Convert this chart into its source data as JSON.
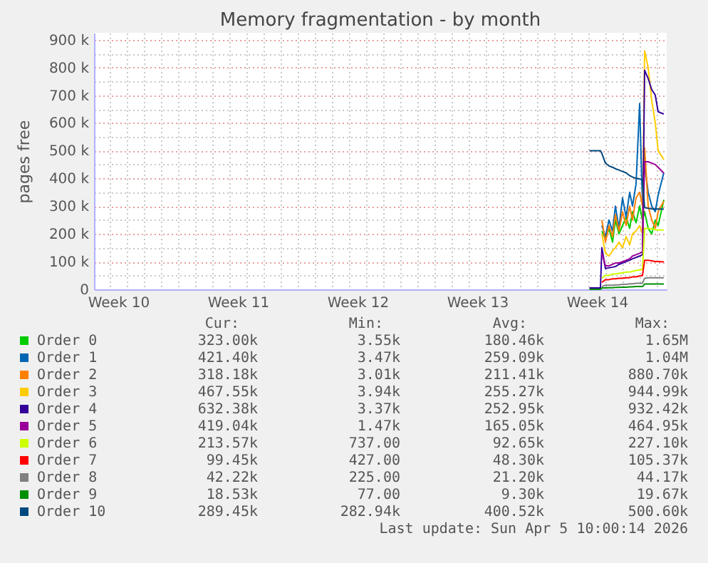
{
  "chart_data": {
    "type": "line",
    "title": "Memory fragmentation - by month",
    "ylabel": "pages free",
    "x": [
      "2026-04-01T01:30",
      "2026-04-01T07:00",
      "2026-04-01T12:00",
      "2026-04-01T17:00",
      "2026-04-01T19:00",
      "2026-04-02T00:00",
      "2026-04-02T05:00",
      "2026-04-02T10:00",
      "2026-04-02T14:00",
      "2026-04-02T19:00",
      "2026-04-03T00:00",
      "2026-04-03T05:00",
      "2026-04-03T10:00",
      "2026-04-03T14:00",
      "2026-04-03T19:00",
      "2026-04-04T00:00",
      "2026-04-04T04:00",
      "2026-04-04T07:00",
      "2026-04-04T12:00",
      "2026-04-04T17:00",
      "2026-04-04T22:00",
      "2026-04-05T02:00",
      "2026-04-05T10:00"
    ],
    "series": [
      {
        "name": "Order 0",
        "color": "#00cc00",
        "values": [
          null,
          null,
          null,
          null,
          210000,
          180000,
          220000,
          170000,
          250000,
          200000,
          230000,
          260000,
          220000,
          280000,
          240000,
          300000,
          250000,
          280000,
          220000,
          200000,
          250000,
          230000,
          323000
        ]
      },
      {
        "name": "Order 1",
        "color": "#0066b3",
        "values": [
          null,
          null,
          null,
          null,
          230000,
          190000,
          250000,
          210000,
          300000,
          220000,
          330000,
          260000,
          350000,
          300000,
          380000,
          670000,
          300000,
          450000,
          350000,
          300000,
          280000,
          340000,
          421000
        ]
      },
      {
        "name": "Order 2",
        "color": "#ff8000",
        "values": [
          null,
          null,
          null,
          null,
          250000,
          170000,
          230000,
          190000,
          270000,
          210000,
          280000,
          230000,
          300000,
          250000,
          330000,
          350000,
          300000,
          510000,
          300000,
          250000,
          220000,
          280000,
          318000
        ]
      },
      {
        "name": "Order 3",
        "color": "#ffcc00",
        "values": [
          null,
          null,
          null,
          null,
          200000,
          130000,
          120000,
          140000,
          150000,
          170000,
          150000,
          190000,
          160000,
          200000,
          210000,
          230000,
          200000,
          860000,
          800000,
          680000,
          600000,
          500000,
          468000
        ]
      },
      {
        "name": "Order 4",
        "color": "#330099",
        "values": [
          5000,
          5000,
          5000,
          5000,
          150000,
          75000,
          78000,
          80000,
          82000,
          90000,
          95000,
          100000,
          105000,
          110000,
          115000,
          120000,
          125000,
          790000,
          760000,
          720000,
          700000,
          640000,
          632000
        ]
      },
      {
        "name": "Order 5",
        "color": "#990099",
        "values": [
          null,
          null,
          null,
          null,
          130000,
          85000,
          85000,
          90000,
          95000,
          95000,
          100000,
          105000,
          110000,
          120000,
          125000,
          130000,
          135000,
          460000,
          460000,
          455000,
          450000,
          440000,
          419000
        ]
      },
      {
        "name": "Order 6",
        "color": "#ccff00",
        "values": [
          null,
          null,
          null,
          null,
          40000,
          50000,
          50000,
          55000,
          55000,
          58000,
          60000,
          62000,
          62000,
          65000,
          68000,
          70000,
          72000,
          220000,
          220000,
          218000,
          215000,
          214000,
          214000
        ]
      },
      {
        "name": "Order 7",
        "color": "#ff0000",
        "values": [
          null,
          null,
          null,
          null,
          25000,
          35000,
          35000,
          38000,
          38000,
          40000,
          40000,
          42000,
          42000,
          45000,
          45000,
          48000,
          50000,
          105000,
          105000,
          103000,
          100000,
          100000,
          99000
        ]
      },
      {
        "name": "Order 8",
        "color": "#808080",
        "values": [
          null,
          null,
          null,
          null,
          10000,
          15000,
          15000,
          15000,
          16000,
          16000,
          18000,
          18000,
          20000,
          20000,
          22000,
          22000,
          22000,
          40000,
          42000,
          42000,
          42000,
          42000,
          42000
        ]
      },
      {
        "name": "Order 9",
        "color": "#008f00",
        "values": [
          0,
          0,
          0,
          0,
          5000,
          5000,
          6000,
          6000,
          7000,
          7000,
          8000,
          8000,
          9000,
          9000,
          10000,
          10000,
          10000,
          19000,
          19000,
          19000,
          19000,
          19000,
          19000
        ]
      },
      {
        "name": "Order 10",
        "color": "#00487d",
        "values": [
          500000,
          500000,
          500000,
          500000,
          490000,
          455000,
          445000,
          440000,
          435000,
          430000,
          425000,
          420000,
          410000,
          405000,
          400000,
          398000,
          395000,
          295000,
          292000,
          290000,
          290000,
          290000,
          289000
        ]
      }
    ],
    "xlim": [
      "2026-03-03T02:00",
      "2026-04-05T14:00"
    ],
    "xticks": [
      {
        "value": "2026-03-04",
        "label": null
      },
      {
        "value": "2026-03-04T12:00",
        "label": "Week 10"
      },
      {
        "value": "2026-03-05",
        "label": null
      },
      {
        "value": "2026-03-06",
        "label": null
      },
      {
        "value": "2026-03-07",
        "label": null
      },
      {
        "value": "2026-03-08",
        "label": null
      },
      {
        "value": "2026-03-09",
        "label": null
      },
      {
        "value": "2026-03-10",
        "label": null
      },
      {
        "value": "2026-03-11",
        "label": null
      },
      {
        "value": "2026-03-11T12:00",
        "label": "Week 11"
      },
      {
        "value": "2026-03-12",
        "label": null
      },
      {
        "value": "2026-03-13",
        "label": null
      },
      {
        "value": "2026-03-14",
        "label": null
      },
      {
        "value": "2026-03-15",
        "label": null
      },
      {
        "value": "2026-03-16",
        "label": null
      },
      {
        "value": "2026-03-17",
        "label": null
      },
      {
        "value": "2026-03-18",
        "label": null
      },
      {
        "value": "2026-03-18T12:00",
        "label": "Week 12"
      },
      {
        "value": "2026-03-19",
        "label": null
      },
      {
        "value": "2026-03-20",
        "label": null
      },
      {
        "value": "2026-03-21",
        "label": null
      },
      {
        "value": "2026-03-22",
        "label": null
      },
      {
        "value": "2026-03-23",
        "label": null
      },
      {
        "value": "2026-03-24",
        "label": null
      },
      {
        "value": "2026-03-25",
        "label": null
      },
      {
        "value": "2026-03-25T12:00",
        "label": "Week 13"
      },
      {
        "value": "2026-03-26",
        "label": null
      },
      {
        "value": "2026-03-27",
        "label": null
      },
      {
        "value": "2026-03-28",
        "label": null
      },
      {
        "value": "2026-03-29",
        "label": null
      },
      {
        "value": "2026-03-30",
        "label": null
      },
      {
        "value": "2026-03-31",
        "label": null
      },
      {
        "value": "2026-04-01",
        "label": null
      },
      {
        "value": "2026-04-01T12:00",
        "label": "Week 14"
      },
      {
        "value": "2026-04-02",
        "label": null
      },
      {
        "value": "2026-04-03",
        "label": null
      },
      {
        "value": "2026-04-04",
        "label": null
      },
      {
        "value": "2026-04-05",
        "label": null
      }
    ],
    "ylim": [
      0,
      925000
    ],
    "yticks": [
      {
        "value": 0,
        "label": "0"
      },
      {
        "value": 50000,
        "label": null
      },
      {
        "value": 100000,
        "label": "100 k"
      },
      {
        "value": 150000,
        "label": null
      },
      {
        "value": 200000,
        "label": "200 k"
      },
      {
        "value": 250000,
        "label": null
      },
      {
        "value": 300000,
        "label": "300 k"
      },
      {
        "value": 350000,
        "label": null
      },
      {
        "value": 400000,
        "label": "400 k"
      },
      {
        "value": 450000,
        "label": null
      },
      {
        "value": 500000,
        "label": "500 k"
      },
      {
        "value": 550000,
        "label": null
      },
      {
        "value": 600000,
        "label": "600 k"
      },
      {
        "value": 650000,
        "label": null
      },
      {
        "value": 700000,
        "label": "700 k"
      },
      {
        "value": 750000,
        "label": null
      },
      {
        "value": 800000,
        "label": "800 k"
      },
      {
        "value": 850000,
        "label": null
      },
      {
        "value": 900000,
        "label": "900 k"
      }
    ],
    "grid": true,
    "legend": "bottom",
    "annotations": [
      "Cur:",
      "Min:",
      "Avg:",
      "Max:",
      "323.00k",
      "3.55k",
      "180.46k",
      "1.65M",
      "421.40k",
      "3.47k",
      "259.09k",
      "1.04M",
      "318.18k",
      "3.01k",
      "211.41k",
      "880.70k",
      "467.55k",
      "3.94k",
      "255.27k",
      "944.99k",
      "632.38k",
      "3.37k",
      "252.95k",
      "932.42k",
      "419.04k",
      "1.47k",
      "165.05k",
      "464.95k",
      "213.57k",
      "737.00",
      "92.65k",
      "227.10k",
      "99.45k",
      "427.00",
      "48.30k",
      "105.37k",
      "42.22k",
      "225.00",
      "21.20k",
      "44.17k",
      "18.53k",
      "77.00",
      "9.30k",
      "19.67k",
      "289.45k",
      "282.94k",
      "400.52k",
      "500.60k",
      "Last update: Sun Apr  5 10:00:14 2026"
    ]
  }
}
